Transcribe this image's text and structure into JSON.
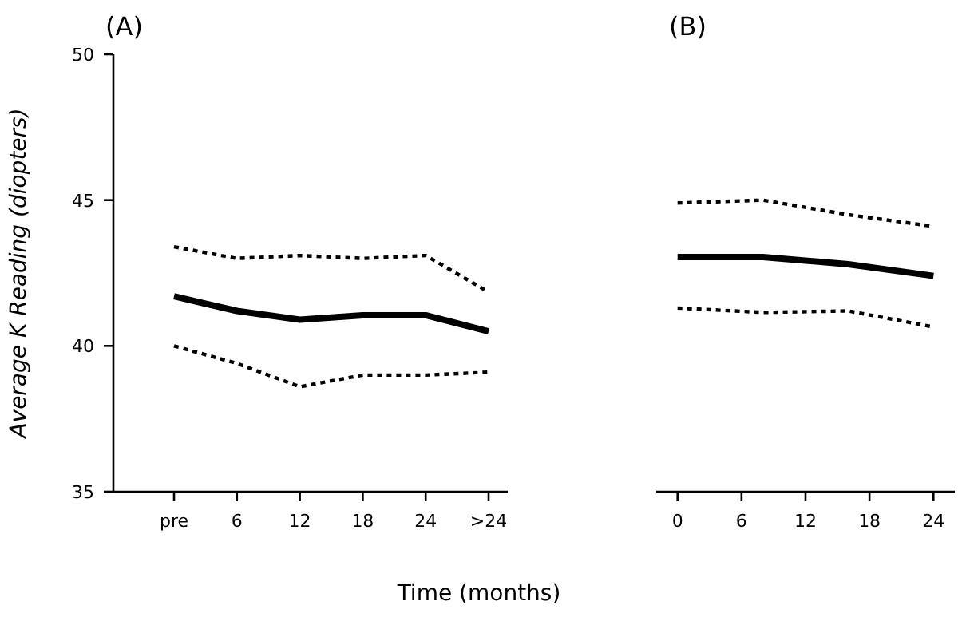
{
  "chart_data": [
    {
      "type": "line",
      "title": "(A)",
      "ylabel": "Average K Reading (diopters)",
      "xlabel": "Time (months)",
      "categories": [
        "pre",
        "6",
        "12",
        "18",
        "24",
        ">24"
      ],
      "ylim": [
        35,
        50
      ],
      "yticks": [
        35,
        40,
        45,
        50
      ],
      "marker": "none",
      "series": [
        {
          "color": "#000000",
          "line_style": "dotted",
          "values": [
            43.4,
            43.0,
            43.1,
            43.0,
            43.1,
            41.85
          ]
        },
        {
          "color": "#000000",
          "line_style": "solid",
          "values": [
            41.7,
            41.2,
            40.9,
            41.05,
            41.05,
            40.5
          ]
        },
        {
          "color": "#000000",
          "line_style": "dotted",
          "values": [
            40.0,
            39.4,
            38.6,
            39.0,
            39.0,
            39.1
          ]
        }
      ]
    },
    {
      "type": "line",
      "title": "(B)",
      "x": [
        0,
        8,
        16,
        24
      ],
      "xlim": [
        -2,
        26
      ],
      "xticks": [
        0,
        6,
        12,
        18,
        24
      ],
      "ylim": [
        35,
        50
      ],
      "tick_labels": "x",
      "marker": "none",
      "series": [
        {
          "color": "#000000",
          "line_style": "dotted",
          "values": [
            44.9,
            45.0,
            44.5,
            44.1
          ]
        },
        {
          "color": "#000000",
          "line_style": "solid",
          "values": [
            43.05,
            43.05,
            42.8,
            42.4
          ]
        },
        {
          "color": "#000000",
          "line_style": "dotted",
          "values": [
            41.3,
            41.15,
            41.2,
            40.65
          ]
        }
      ]
    }
  ]
}
